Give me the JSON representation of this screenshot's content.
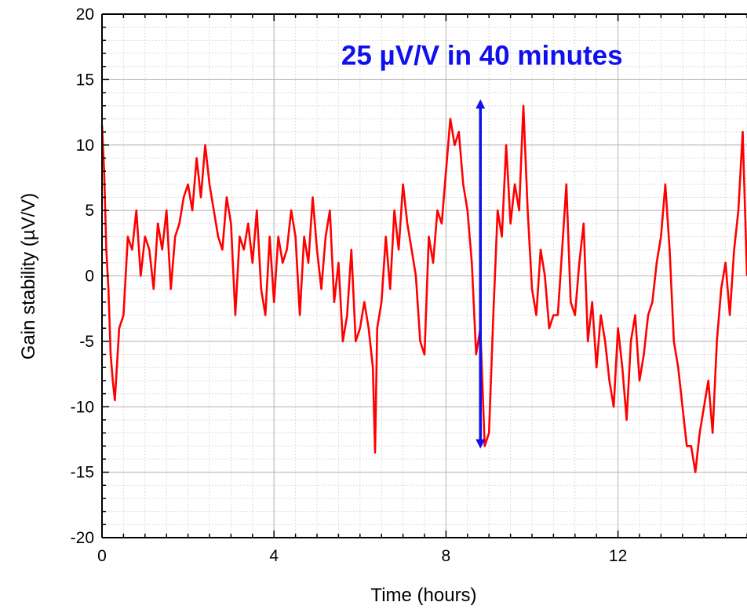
{
  "chart_data": {
    "type": "line",
    "title": "",
    "xlabel": "Time (hours)",
    "ylabel": "Gain stability (µV/V)",
    "xlim": [
      0,
      15
    ],
    "ylim": [
      -20,
      20
    ],
    "xticks": [
      0,
      4,
      8,
      12
    ],
    "yticks": [
      -20,
      -15,
      -10,
      -5,
      0,
      5,
      10,
      15,
      20
    ],
    "x_tick_labels": [
      "0",
      "4",
      "8",
      "12"
    ],
    "y_tick_labels": [
      "-20",
      "-15",
      "-10",
      "-5",
      "0",
      "5",
      "10",
      "15",
      "20"
    ],
    "minor_x_step": 0.5,
    "minor_y_step": 1,
    "grid": true,
    "legend": "none",
    "series": [
      {
        "color": "#ff0000",
        "x": [
          0,
          0.05,
          0.1,
          0.15,
          0.2,
          0.25,
          0.3,
          0.4,
          0.5,
          0.6,
          0.7,
          0.8,
          0.9,
          1.0,
          1.1,
          1.2,
          1.3,
          1.4,
          1.5,
          1.6,
          1.7,
          1.8,
          1.9,
          2.0,
          2.1,
          2.2,
          2.3,
          2.4,
          2.5,
          2.6,
          2.7,
          2.8,
          2.9,
          3.0,
          3.1,
          3.2,
          3.3,
          3.4,
          3.5,
          3.6,
          3.7,
          3.8,
          3.9,
          4.0,
          4.1,
          4.2,
          4.3,
          4.4,
          4.5,
          4.6,
          4.7,
          4.8,
          4.9,
          5.0,
          5.1,
          5.2,
          5.3,
          5.4,
          5.5,
          5.6,
          5.7,
          5.8,
          5.9,
          6.0,
          6.1,
          6.2,
          6.3,
          6.35,
          6.4,
          6.5,
          6.6,
          6.7,
          6.8,
          6.9,
          7.0,
          7.1,
          7.2,
          7.3,
          7.4,
          7.5,
          7.6,
          7.7,
          7.8,
          7.9,
          8.0,
          8.1,
          8.2,
          8.3,
          8.4,
          8.5,
          8.6,
          8.7,
          8.8,
          8.9,
          9.0,
          9.1,
          9.2,
          9.3,
          9.4,
          9.5,
          9.6,
          9.7,
          9.8,
          9.9,
          10.0,
          10.1,
          10.2,
          10.3,
          10.4,
          10.5,
          10.6,
          10.7,
          10.8,
          10.9,
          11.0,
          11.1,
          11.2,
          11.3,
          11.4,
          11.5,
          11.6,
          11.7,
          11.8,
          11.9,
          12.0,
          12.1,
          12.2,
          12.3,
          12.4,
          12.5,
          12.6,
          12.7,
          12.8,
          12.9,
          13.0,
          13.1,
          13.2,
          13.3,
          13.4,
          13.5,
          13.6,
          13.7,
          13.8,
          13.9,
          14.0,
          14.1,
          14.2,
          14.3,
          14.4,
          14.5,
          14.6,
          14.7,
          14.8,
          14.9,
          15.0
        ],
        "y": [
          11.5,
          8,
          2,
          -1,
          -6,
          -8,
          -9.5,
          -4,
          -3,
          3,
          2,
          5,
          0,
          3,
          2,
          -1,
          4,
          2,
          5,
          -1,
          3,
          4,
          6,
          7,
          5,
          9,
          6,
          10,
          7,
          5,
          3,
          2,
          6,
          4,
          -3,
          3,
          2,
          4,
          1,
          5,
          -1,
          -3,
          3,
          -2,
          3,
          1,
          2,
          5,
          3,
          -3,
          3,
          1,
          6,
          2,
          -1,
          3,
          5,
          -2,
          1,
          -5,
          -3,
          2,
          -5,
          -4,
          -2,
          -4,
          -7,
          -13.5,
          -4,
          -2,
          3,
          -1,
          5,
          2,
          7,
          4,
          2,
          0,
          -5,
          -6,
          3,
          1,
          5,
          4,
          8,
          12,
          10,
          11,
          7,
          5,
          1,
          -6,
          -4,
          -13,
          -12,
          -3,
          5,
          3,
          10,
          4,
          7,
          5,
          13,
          5,
          -1,
          -3,
          2,
          0,
          -4,
          -3,
          -3,
          2,
          7,
          -2,
          -3,
          1,
          4,
          -5,
          -2,
          -7,
          -3,
          -5,
          -8,
          -10,
          -4,
          -7,
          -11,
          -5,
          -3,
          -8,
          -6,
          -3,
          -2,
          1,
          3,
          7,
          2,
          -5,
          -7,
          -10,
          -13,
          -13,
          -15,
          -12,
          -10,
          -8,
          -12,
          -5,
          -1,
          1,
          -3,
          2,
          5,
          11,
          0
        ]
      }
    ],
    "annotation": {
      "text": "25 µV/V in 40 minutes",
      "color": "#1010ee",
      "arrow_x": 8.8,
      "arrow_y_top": 13.5,
      "arrow_y_bottom": -13.2,
      "text_x": 8.8,
      "text_y": 16
    }
  }
}
